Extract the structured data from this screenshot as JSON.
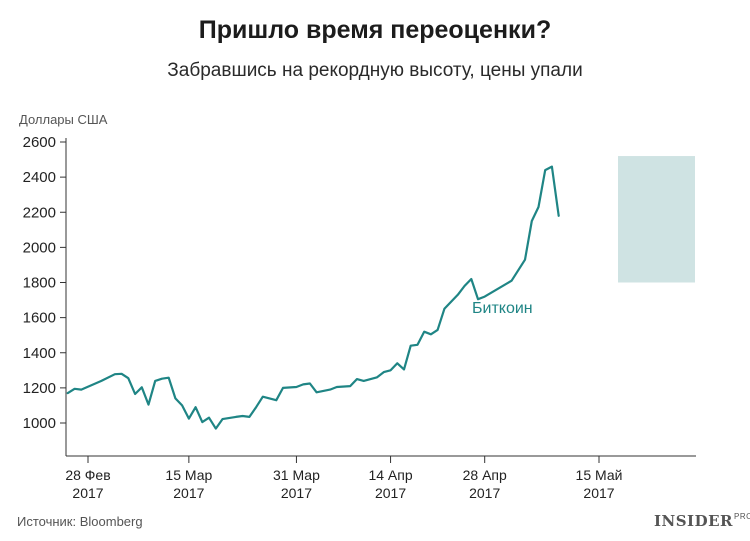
{
  "header": {
    "title": "Пришло время переоценки?",
    "subtitle": "Забравшись на рекордную высоту, цены упали"
  },
  "footer": {
    "source": "Источник: Bloomberg",
    "logo_text": "INSIDER",
    "logo_suffix": "PRO"
  },
  "colors": {
    "line": "#1f8585",
    "highlight": "#cfe3e3",
    "axis": "#333333",
    "text": "#222222"
  },
  "chart_data": {
    "type": "line",
    "title": "Пришло время переоценки?",
    "subtitle": "Забравшись на рекордную высоту, цены упали",
    "ylabel": "Доллары США",
    "xlabel": "",
    "ylim": [
      900,
      2600
    ],
    "yticks": [
      1000,
      1200,
      1400,
      1600,
      1800,
      2000,
      2200,
      2400,
      2600
    ],
    "xlim": [
      "2017-02-24",
      "2017-05-29"
    ],
    "xticks": [
      {
        "date": "2017-02-28",
        "label_top": "28 Фев",
        "label_bottom": "2017"
      },
      {
        "date": "2017-03-15",
        "label_top": "15 Мар",
        "label_bottom": "2017"
      },
      {
        "date": "2017-03-31",
        "label_top": "31 Мар",
        "label_bottom": "2017"
      },
      {
        "date": "2017-04-14",
        "label_top": "14 Апр",
        "label_bottom": "2017"
      },
      {
        "date": "2017-04-28",
        "label_top": "28 Апр",
        "label_bottom": "2017"
      },
      {
        "date": "2017-05-15",
        "label_top": "15 Май",
        "label_bottom": "2017"
      }
    ],
    "grid": false,
    "highlight": {
      "x_start": "2017-05-18",
      "x_end": "2017-05-29",
      "y_start": 1800,
      "y_end": 2520
    },
    "series": [
      {
        "name": "Биткоин",
        "color": "#1f8585",
        "points": [
          [
            "2017-02-25",
            1170
          ],
          [
            "2017-02-26",
            1195
          ],
          [
            "2017-02-27",
            1190
          ],
          [
            "2017-03-02",
            1240
          ],
          [
            "2017-03-04",
            1278
          ],
          [
            "2017-03-05",
            1280
          ],
          [
            "2017-03-06",
            1255
          ],
          [
            "2017-03-07",
            1165
          ],
          [
            "2017-03-08",
            1203
          ],
          [
            "2017-03-09",
            1105
          ],
          [
            "2017-03-10",
            1240
          ],
          [
            "2017-03-11",
            1252
          ],
          [
            "2017-03-12",
            1258
          ],
          [
            "2017-03-13",
            1140
          ],
          [
            "2017-03-14",
            1100
          ],
          [
            "2017-03-15",
            1025
          ],
          [
            "2017-03-16",
            1090
          ],
          [
            "2017-03-17",
            1005
          ],
          [
            "2017-03-18",
            1030
          ],
          [
            "2017-03-19",
            968
          ],
          [
            "2017-03-20",
            1022
          ],
          [
            "2017-03-22",
            1035
          ],
          [
            "2017-03-23",
            1040
          ],
          [
            "2017-03-24",
            1035
          ],
          [
            "2017-03-25",
            1090
          ],
          [
            "2017-03-26",
            1150
          ],
          [
            "2017-03-28",
            1130
          ],
          [
            "2017-03-29",
            1200
          ],
          [
            "2017-03-31",
            1205
          ],
          [
            "2017-04-01",
            1220
          ],
          [
            "2017-04-02",
            1225
          ],
          [
            "2017-04-03",
            1175
          ],
          [
            "2017-04-05",
            1190
          ],
          [
            "2017-04-06",
            1205
          ],
          [
            "2017-04-08",
            1210
          ],
          [
            "2017-04-09",
            1250
          ],
          [
            "2017-04-10",
            1240
          ],
          [
            "2017-04-12",
            1260
          ],
          [
            "2017-04-13",
            1290
          ],
          [
            "2017-04-14",
            1300
          ],
          [
            "2017-04-15",
            1340
          ],
          [
            "2017-04-16",
            1305
          ],
          [
            "2017-04-17",
            1440
          ],
          [
            "2017-04-18",
            1445
          ],
          [
            "2017-04-19",
            1520
          ],
          [
            "2017-04-20",
            1505
          ],
          [
            "2017-04-21",
            1530
          ],
          [
            "2017-04-22",
            1650
          ],
          [
            "2017-04-24",
            1730
          ],
          [
            "2017-04-25",
            1780
          ],
          [
            "2017-04-26",
            1820
          ],
          [
            "2017-04-27",
            1705
          ],
          [
            "2017-04-28",
            1720
          ],
          [
            "2017-05-02",
            1810
          ],
          [
            "2017-05-04",
            1930
          ],
          [
            "2017-05-05",
            2150
          ],
          [
            "2017-05-06",
            2230
          ],
          [
            "2017-05-07",
            2440
          ],
          [
            "2017-05-08",
            2460
          ],
          [
            "2017-05-09",
            2180
          ]
        ]
      }
    ],
    "series_label_position": "near-line-right"
  }
}
